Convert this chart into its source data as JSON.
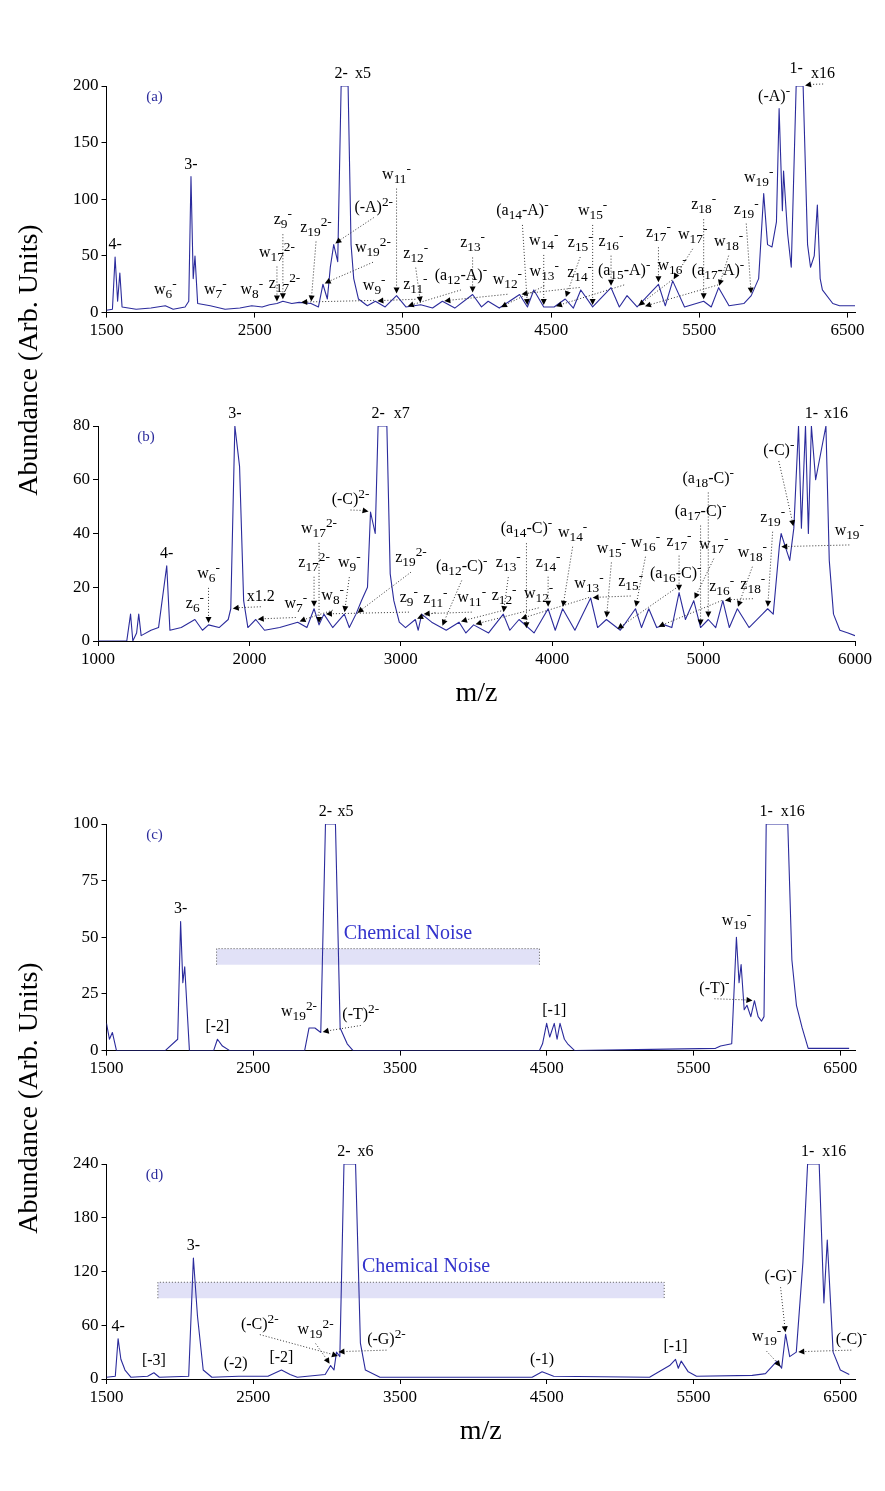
{
  "chart_data": [
    {
      "type": "line",
      "title": "(a)",
      "ylabel": "Abundance (Arb. Units)",
      "xlim": [
        1500,
        6550
      ],
      "xticks": [
        1500,
        2500,
        3500,
        4500,
        5500,
        6500
      ],
      "ylim": [
        0,
        200
      ],
      "yticks": [
        0,
        50,
        100,
        150,
        200
      ],
      "grid": false,
      "legend": false,
      "marker": "none",
      "series": [
        {
          "color": "#2b2b9c",
          "x": [
            1500,
            1540,
            1558,
            1575,
            1590,
            1605,
            1700,
            1800,
            1897,
            1950,
            2030,
            2055,
            2070,
            2085,
            2097,
            2115,
            2200,
            2300,
            2400,
            2480,
            2550,
            2600,
            2650,
            2690,
            2750,
            2800,
            2880,
            2930,
            2960,
            2990,
            3010,
            3033,
            3060,
            3083,
            3130,
            3150,
            3168,
            3200,
            3260,
            3314,
            3380,
            3457,
            3520,
            3620,
            3700,
            3766,
            3850,
            3970,
            4030,
            4075,
            4150,
            4287,
            4340,
            4383,
            4450,
            4520,
            4595,
            4650,
            4700,
            4780,
            4904,
            4960,
            5012,
            5080,
            5224,
            5270,
            5320,
            5400,
            5529,
            5580,
            5630,
            5700,
            5800,
            5850,
            5900,
            5934,
            5960,
            5990,
            6020,
            6038,
            6060,
            6068,
            6095,
            6120,
            6153,
            6200,
            6230,
            6250,
            6275,
            6296,
            6315,
            6330,
            6400,
            6446,
            6550
          ],
          "values": [
            2,
            3,
            49,
            10,
            35,
            5,
            3,
            4,
            6,
            3,
            5,
            10,
            120,
            30,
            50,
            8,
            6,
            3,
            4,
            6,
            5,
            7,
            8,
            10,
            8,
            9,
            8,
            5,
            25,
            12,
            40,
            60,
            45,
            200,
            200,
            60,
            30,
            12,
            6,
            10,
            5,
            15,
            5,
            7,
            4,
            10,
            4,
            16,
            5,
            10,
            4,
            16,
            5,
            20,
            5,
            5,
            12,
            4,
            20,
            5,
            22,
            5,
            15,
            5,
            25,
            6,
            28,
            5,
            10,
            5,
            22,
            6,
            8,
            15,
            30,
            105,
            60,
            58,
            80,
            180,
            90,
            125,
            70,
            40,
            200,
            200,
            60,
            40,
            50,
            95,
            30,
            20,
            8,
            6,
            6
          ]
        }
      ],
      "annotations": [
        {
          "text": "4-",
          "x": 1558,
          "y": 49
        },
        {
          "text": "w$_{6}$$^{-}$",
          "x": 1897,
          "y": 6
        },
        {
          "text": "3-",
          "x": 2070,
          "y": 120
        },
        {
          "text": "w$_{7}$$^{-}$",
          "x": 2200,
          "y": 6
        },
        {
          "text": "w$_{8}$$^{-}$",
          "x": 2480,
          "y": 6
        },
        {
          "text": "z$_{17}$$^{2-}$",
          "x": 2600,
          "y": 7
        },
        {
          "text": "w$_{17}$$^{2-}$",
          "x": 2650,
          "y": 8
        },
        {
          "text": "z$_{9}$$^{-}$",
          "x": 2690,
          "y": 10
        },
        {
          "text": "w$_{9}$$^{-}$",
          "x": 2800,
          "y": 9
        },
        {
          "text": "z$_{19}$$^{2-}$",
          "x": 2880,
          "y": 8
        },
        {
          "text": "w$_{19}$$^{2-}$",
          "x": 2960,
          "y": 25
        },
        {
          "text": "(-A)$^{2-}$",
          "x": 3033,
          "y": 60
        },
        {
          "text": "2-",
          "x": 3083,
          "y": 200
        },
        {
          "text": "x5",
          "x": 3130,
          "y": 200
        },
        {
          "text": "z$_{11}$$^{-}$",
          "x": 3314,
          "y": 10
        },
        {
          "text": "w$_{11}$$^{-}$",
          "x": 3457,
          "y": 15
        },
        {
          "text": "(a$_{12}$-A)$^{-}$",
          "x": 3520,
          "y": 5
        },
        {
          "text": "z$_{12}$$^{-}$",
          "x": 3620,
          "y": 7
        },
        {
          "text": "w$_{12}$$^{-}$",
          "x": 3766,
          "y": 10
        },
        {
          "text": "z$_{13}$$^{-}$",
          "x": 3970,
          "y": 16
        },
        {
          "text": "w$_{13}$$^{-}$",
          "x": 4150,
          "y": 4
        },
        {
          "text": "(a$_{14}$-A)$^{-}$",
          "x": 4340,
          "y": 5
        },
        {
          "text": "z$_{14}$$^{-}$",
          "x": 4287,
          "y": 16
        },
        {
          "text": "w$_{14}$$^{-}$",
          "x": 4450,
          "y": 5
        },
        {
          "text": "(a$_{15}$-A)$^{-}$",
          "x": 4520,
          "y": 5
        },
        {
          "text": "z$_{15}$$^{-}$",
          "x": 4595,
          "y": 12
        },
        {
          "text": "w$_{15}$$^{-}$",
          "x": 4780,
          "y": 5
        },
        {
          "text": "z$_{16}$$^{-}$",
          "x": 4904,
          "y": 22
        },
        {
          "text": "w$_{16}$$^{-}$",
          "x": 5080,
          "y": 5
        },
        {
          "text": "(a$_{17}$-A)$^{-}$",
          "x": 5120,
          "y": 5
        },
        {
          "text": "z$_{17}$$^{-}$",
          "x": 5224,
          "y": 25
        },
        {
          "text": "w$_{17}$$^{-}$",
          "x": 5320,
          "y": 28
        },
        {
          "text": "z$_{18}$$^{-}$",
          "x": 5529,
          "y": 10
        },
        {
          "text": "w$_{18}$$^{-}$",
          "x": 5630,
          "y": 22
        },
        {
          "text": "z$_{19}$$^{-}$",
          "x": 5850,
          "y": 15
        },
        {
          "text": "w$_{19}$$^{-}$",
          "x": 5934,
          "y": 105
        },
        {
          "text": "(-A)$^{-}$",
          "x": 6038,
          "y": 180
        },
        {
          "text": "1-",
          "x": 6153,
          "y": 200
        },
        {
          "text": "x16",
          "x": 6200,
          "y": 200
        }
      ]
    },
    {
      "type": "line",
      "title": "(b)",
      "xlabel": "m/z",
      "xlim": [
        1000,
        6000
      ],
      "xticks": [
        1000,
        2000,
        3000,
        4000,
        5000,
        6000
      ],
      "ylim": [
        0,
        80
      ],
      "yticks": [
        0,
        20,
        40,
        60,
        80
      ],
      "grid": false,
      "legend": false,
      "marker": "none",
      "series": [
        {
          "color": "#2b2b9c",
          "x": [
            1000,
            1190,
            1215,
            1230,
            1255,
            1269,
            1285,
            1350,
            1400,
            1454,
            1475,
            1550,
            1640,
            1690,
            1730,
            1800,
            1860,
            1877,
            1904,
            1935,
            1962,
            1990,
            2042,
            2100,
            2200,
            2319,
            2380,
            2427,
            2460,
            2492,
            2550,
            2627,
            2660,
            2704,
            2740,
            2780,
            2800,
            2831,
            2850,
            2908,
            2930,
            2954,
            2990,
            3031,
            3096,
            3115,
            3138,
            3204,
            3300,
            3385,
            3430,
            3481,
            3580,
            3677,
            3720,
            3781,
            3880,
            3973,
            4020,
            4069,
            4150,
            4254,
            4300,
            4358,
            4450,
            4550,
            4590,
            4638,
            4690,
            4742,
            4790,
            4838,
            4880,
            4935,
            4980,
            5031,
            5080,
            5127,
            5170,
            5223,
            5300,
            5423,
            5460,
            5500,
            5512,
            5540,
            5569,
            5596,
            5627,
            5646,
            5673,
            5692,
            5712,
            5740,
            5808,
            5830,
            5858,
            5900,
            5954,
            6000
          ],
          "values": [
            0,
            0,
            10,
            0,
            3,
            10,
            2,
            4,
            5,
            28,
            4,
            5,
            8,
            4,
            6,
            5,
            8,
            12,
            80,
            65,
            15,
            5,
            8,
            4,
            5,
            7,
            5,
            12,
            6,
            10,
            5,
            10,
            5,
            10,
            15,
            20,
            48,
            40,
            80,
            80,
            25,
            15,
            7,
            5,
            8,
            4,
            10,
            7,
            4,
            7,
            3,
            6,
            3,
            10,
            4,
            8,
            3,
            12,
            4,
            12,
            4,
            16,
            5,
            8,
            4,
            12,
            5,
            12,
            5,
            6,
            5,
            18,
            8,
            15,
            5,
            8,
            5,
            15,
            5,
            12,
            5,
            12,
            10,
            35,
            40,
            35,
            30,
            42,
            80,
            42,
            80,
            40,
            80,
            60,
            80,
            30,
            10,
            4,
            3,
            2
          ]
        }
      ],
      "annotations": [
        {
          "text": "4-",
          "x": 1454,
          "y": 28
        },
        {
          "text": "z$_{6}$$^{-}$",
          "x": 1640,
          "y": 8
        },
        {
          "text": "w$_{6}$$^{-}$",
          "x": 1730,
          "y": 6
        },
        {
          "text": "x1.2",
          "x": 1877,
          "y": 12
        },
        {
          "text": "3-",
          "x": 1904,
          "y": 80
        },
        {
          "text": "w$_{7}$$^{-}$",
          "x": 2042,
          "y": 8
        },
        {
          "text": "w$_{8}$$^{-}$",
          "x": 2319,
          "y": 7
        },
        {
          "text": "z$_{17}$$^{2-}$",
          "x": 2427,
          "y": 12
        },
        {
          "text": "w$_{17}$$^{2-}$",
          "x": 2460,
          "y": 6
        },
        {
          "text": "z$_{9}$$^{-}$",
          "x": 2492,
          "y": 10
        },
        {
          "text": "w$_{9}$$^{-}$",
          "x": 2627,
          "y": 10
        },
        {
          "text": "z$_{19}$$^{2-}$",
          "x": 2704,
          "y": 10
        },
        {
          "text": "(-C)$^{2-}$",
          "x": 2800,
          "y": 48
        },
        {
          "text": "2-",
          "x": 2850,
          "y": 80
        },
        {
          "text": "x7",
          "x": 2908,
          "y": 80
        },
        {
          "text": "z$_{11}$$^{-}$",
          "x": 3096,
          "y": 8
        },
        {
          "text": "w$_{11}$$^{-}$",
          "x": 3138,
          "y": 10
        },
        {
          "text": "(a$_{12}$-C)$^{-}$",
          "x": 3270,
          "y": 5
        },
        {
          "text": "z$_{12}$$^{-}$",
          "x": 3385,
          "y": 7
        },
        {
          "text": "w$_{12}$$^{-}$",
          "x": 3481,
          "y": 6
        },
        {
          "text": "z$_{13}$$^{-}$",
          "x": 3677,
          "y": 10
        },
        {
          "text": "w$_{13}$$^{-}$",
          "x": 3781,
          "y": 8
        },
        {
          "text": "(a$_{14}$-C)$^{-}$",
          "x": 3830,
          "y": 4
        },
        {
          "text": "z$_{14}$$^{-}$",
          "x": 3973,
          "y": 12
        },
        {
          "text": "w$_{14}$$^{-}$",
          "x": 4069,
          "y": 12
        },
        {
          "text": "z$_{15}$$^{-}$",
          "x": 4254,
          "y": 16
        },
        {
          "text": "w$_{15}$$^{-}$",
          "x": 4358,
          "y": 8
        },
        {
          "text": "(a$_{16}$-C)$^{-}$",
          "x": 4420,
          "y": 4
        },
        {
          "text": "w$_{16}$$^{-}$",
          "x": 4550,
          "y": 12
        },
        {
          "text": "z$_{16}$$^{-}$",
          "x": 4690,
          "y": 5
        },
        {
          "text": "z$_{17}$$^{-}$",
          "x": 4838,
          "y": 18
        },
        {
          "text": "w$_{17}$$^{-}$",
          "x": 4935,
          "y": 15
        },
        {
          "text": "(a$_{17}$-C)$^{-}$",
          "x": 4980,
          "y": 5
        },
        {
          "text": "(a$_{18}$-C)$^{-}$",
          "x": 5031,
          "y": 8
        },
        {
          "text": "z$_{18}$$^{-}$",
          "x": 5127,
          "y": 15
        },
        {
          "text": "w$_{18}$$^{-}$",
          "x": 5223,
          "y": 12
        },
        {
          "text": "z$_{19}$$^{-}$",
          "x": 5423,
          "y": 12
        },
        {
          "text": "w$_{19}$$^{-}$",
          "x": 5500,
          "y": 35
        },
        {
          "text": "(-C)$^{-}$",
          "x": 5596,
          "y": 42
        },
        {
          "text": "1-",
          "x": 5712,
          "y": 80
        },
        {
          "text": "x16",
          "x": 5808,
          "y": 80
        }
      ]
    },
    {
      "type": "line",
      "title": "(c)",
      "ylabel": "Abundance (Arb. Units)",
      "xlim": [
        1500,
        6600
      ],
      "xticks": [
        1500,
        2500,
        3500,
        4500,
        5500,
        6500
      ],
      "ylim": [
        0,
        100
      ],
      "yticks": [
        0,
        25,
        50,
        75,
        100
      ],
      "grid": false,
      "legend": false,
      "marker": "none",
      "series": [
        {
          "color": "#2b2b9c",
          "x": [
            1500,
            1520,
            1540,
            1568,
            1900,
            1985,
            2005,
            2020,
            2033,
            2065,
            2230,
            2256,
            2290,
            2340,
            2850,
            2880,
            2920,
            2960,
            2992,
            3060,
            3092,
            3140,
            3180,
            4450,
            4471,
            4499,
            4520,
            4551,
            4570,
            4590,
            4620,
            4642,
            4690,
            5650,
            5684,
            5760,
            5792,
            5810,
            5824,
            5845,
            5864,
            5890,
            5915,
            5940,
            5963,
            5980,
            5995,
            6142,
            6170,
            6201,
            6240,
            6281,
            6560
          ],
          "values": [
            12,
            5,
            8,
            0,
            0,
            5,
            57,
            30,
            37,
            0,
            0,
            5,
            2,
            0,
            0,
            10,
            10,
            8,
            100,
            100,
            10,
            3,
            0,
            0,
            3,
            12,
            6,
            12,
            5,
            12,
            5,
            3,
            0,
            1,
            2,
            3,
            50,
            30,
            38,
            18,
            20,
            15,
            22,
            15,
            13,
            15,
            100,
            100,
            40,
            20,
            10,
            1,
            1
          ]
        }
      ],
      "bands": [
        {
          "axis": "x",
          "from": 2250,
          "to": 4450,
          "label": "Chemical Noise",
          "color": "#3333cc"
        }
      ],
      "annotations": [
        {
          "text": "3-",
          "x": 2005,
          "y": 57
        },
        {
          "text": "[-2]",
          "x": 2256,
          "y": 5
        },
        {
          "text": "w$_{19}$$^{2-}$",
          "x": 2880,
          "y": 10
        },
        {
          "text": "(-T)$^{2-}$",
          "x": 2960,
          "y": 8
        },
        {
          "text": "2-",
          "x": 2992,
          "y": 100
        },
        {
          "text": "x5",
          "x": 3060,
          "y": 100
        },
        {
          "text": "[-1]",
          "x": 4551,
          "y": 12
        },
        {
          "text": "w$_{19}$$^{-}$",
          "x": 5792,
          "y": 50
        },
        {
          "text": "(-T)$^{-}$",
          "x": 5915,
          "y": 22
        },
        {
          "text": "1-",
          "x": 5995,
          "y": 100
        },
        {
          "text": "x16",
          "x": 6142,
          "y": 100
        }
      ]
    },
    {
      "type": "line",
      "title": "(d)",
      "xlabel": "m/z",
      "xlim": [
        1500,
        6600
      ],
      "xticks": [
        1500,
        2500,
        3500,
        4500,
        5500,
        6500
      ],
      "ylim": [
        0,
        240
      ],
      "yticks": [
        0,
        60,
        120,
        180,
        240
      ],
      "grid": false,
      "legend": false,
      "marker": "none",
      "series": [
        {
          "color": "#2b2b9c",
          "x": [
            1500,
            1560,
            1579,
            1598,
            1626,
            1666,
            1780,
            1823,
            1860,
            2060,
            2092,
            2120,
            2159,
            2218,
            2400,
            2600,
            2692,
            2751,
            2800,
            2990,
            3027,
            3050,
            3067,
            3090,
            3118,
            3197,
            3230,
            3264,
            3363,
            4400,
            4468,
            4547,
            5200,
            5337,
            5377,
            5396,
            5416,
            5464,
            5520,
            5900,
            5990,
            6068,
            6100,
            6127,
            6155,
            6200,
            6245,
            6277,
            6356,
            6388,
            6411,
            6451,
            6500,
            6561
          ],
          "values": [
            2,
            3,
            45,
            22,
            10,
            2,
            3,
            7,
            2,
            3,
            135,
            70,
            10,
            2,
            3,
            3,
            10,
            5,
            2,
            5,
            15,
            10,
            30,
            25,
            240,
            240,
            40,
            10,
            2,
            2,
            8,
            3,
            2,
            15,
            22,
            12,
            20,
            8,
            3,
            4,
            6,
            20,
            12,
            50,
            25,
            30,
            130,
            240,
            240,
            85,
            155,
            30,
            10,
            5
          ]
        }
      ],
      "bands": [
        {
          "axis": "x",
          "from": 1850,
          "to": 5300,
          "label": "Chemical Noise",
          "color": "#3333cc"
        }
      ],
      "annotations": [
        {
          "text": "4-",
          "x": 1579,
          "y": 45
        },
        {
          "text": "[-3]",
          "x": 1823,
          "y": 7
        },
        {
          "text": "3-",
          "x": 2092,
          "y": 135
        },
        {
          "text": "(-2)",
          "x": 2380,
          "y": 3
        },
        {
          "text": "[-2]",
          "x": 2692,
          "y": 10
        },
        {
          "text": "w$_{19}$$^{2-}$",
          "x": 3027,
          "y": 15
        },
        {
          "text": "(-G)$^{2-}$",
          "x": 3067,
          "y": 30
        },
        {
          "text": "(-C)$^{2-}$",
          "x": 3090,
          "y": 25
        },
        {
          "text": "2-",
          "x": 3118,
          "y": 240
        },
        {
          "text": "x6",
          "x": 3197,
          "y": 240
        },
        {
          "text": "(-1)",
          "x": 4468,
          "y": 8
        },
        {
          "text": "[-1]",
          "x": 5377,
          "y": 22
        },
        {
          "text": "w$_{19}$$^{-}$",
          "x": 6100,
          "y": 12
        },
        {
          "text": "(-G)$^{-}$",
          "x": 6127,
          "y": 50
        },
        {
          "text": "(-C)$^{-}$",
          "x": 6200,
          "y": 30
        },
        {
          "text": "1-",
          "x": 6277,
          "y": 240
        },
        {
          "text": "x16",
          "x": 6356,
          "y": 240
        }
      ]
    }
  ]
}
